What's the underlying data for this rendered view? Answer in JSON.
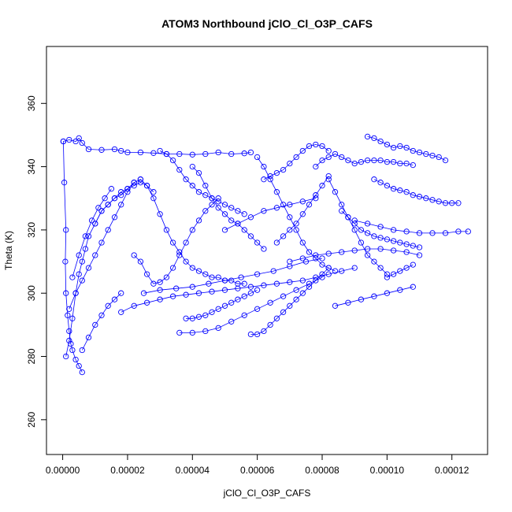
{
  "chart_data": {
    "type": "scatter",
    "title": "ATOM3 Northbound jClO_Cl_O3P_CAFS",
    "xlabel": "jClO_Cl_O3P_CAFS",
    "ylabel": "Theta (K)",
    "xlim": [
      -5e-06,
      0.000131
    ],
    "ylim": [
      249,
      378
    ],
    "xticks": [
      0.0,
      2e-05,
      4e-05,
      6e-05,
      8e-05,
      0.0001,
      0.00012
    ],
    "xtick_labels": [
      "0.00000",
      "0.00002",
      "0.00004",
      "0.00006",
      "0.00008",
      "0.00010",
      "0.00012"
    ],
    "yticks": [
      260,
      280,
      300,
      320,
      340,
      360
    ],
    "ytick_labels": [
      "260",
      "280",
      "300",
      "320",
      "340",
      "360"
    ],
    "grid": false,
    "legend": "none",
    "color": "#0000ff",
    "marker": "open-circle",
    "connected": true,
    "series": [
      {
        "segments": [
          {
            "x": [
              2e-07,
              2e-06,
              4e-06,
              5e-06,
              6e-06,
              8e-06,
              1.2e-05,
              1.6e-05,
              1.8e-05,
              2e-05,
              2.4e-05,
              2.8e-05,
              3.2e-05,
              3.6e-05,
              4e-05,
              4.4e-05,
              4.8e-05,
              5.2e-05,
              5.6e-05,
              5.8e-05
            ],
            "y": [
              348.0,
              348.5,
              348.0,
              349.0,
              347.5,
              345.5,
              345.3,
              345.5,
              345.0,
              344.5,
              344.5,
              344.3,
              344.0,
              344.0,
              343.8,
              344.0,
              344.5,
              344.0,
              344.2,
              344.5
            ]
          },
          {
            "x": [
              2e-07,
              5e-07,
              1e-06,
              8e-07,
              1e-06,
              1.5e-06,
              2e-06,
              2.5e-06,
              3e-06,
              4e-06,
              5e-06,
              6e-06
            ],
            "y": [
              348.0,
              335.0,
              320.0,
              310.0,
              300.0,
              293.0,
              288.0,
              284.0,
              282.0,
              279.0,
              277.0,
              275.0
            ]
          },
          {
            "x": [
              1e-06,
              2e-06,
              3e-06,
              4e-06,
              5e-06,
              6e-06,
              7e-06,
              8e-06,
              1e-05,
              1.2e-05,
              1.4e-05,
              1.6e-05,
              1.8e-05,
              2e-05,
              2.2e-05,
              2.4e-05
            ],
            "y": [
              280.0,
              285.0,
              292.0,
              300.0,
              306.0,
              310.0,
              314.0,
              318.0,
              322.0,
              326.0,
              328.0,
              330.0,
              331.0,
              333.0,
              335.0,
              336.0
            ]
          },
          {
            "x": [
              2e-06,
              4e-06,
              6e-06,
              8e-06,
              1e-05,
              1.2e-05,
              1.4e-05,
              1.6e-05,
              1.8e-05,
              2e-05,
              2.2e-05
            ],
            "y": [
              295.0,
              300.0,
              304.0,
              308.0,
              312.0,
              316.0,
              320.0,
              324.0,
              328.0,
              332.0,
              335.0
            ]
          },
          {
            "x": [
              3e-06,
              5e-06,
              7e-06,
              9e-06,
              1.1e-05,
              1.3e-05,
              1.5e-05
            ],
            "y": [
              305.0,
              312.0,
              318.0,
              323.0,
              327.0,
              330.0,
              333.0
            ]
          },
          {
            "x": [
              2.4e-05,
              2.6e-05,
              2.8e-05,
              3e-05,
              3.2e-05,
              3.4e-05,
              3.6e-05,
              3.8e-05,
              4e-05,
              4.2e-05,
              4.4e-05,
              4.6e-05,
              4.8e-05,
              5e-05,
              5.2e-05,
              5.4e-05,
              5.6e-05
            ],
            "y": [
              336.0,
              334.0,
              330.0,
              325.0,
              320.0,
              316.0,
              313.0,
              310.0,
              308.0,
              307.0,
              306.0,
              305.0,
              305.0,
              304.0,
              304.0,
              303.0,
              303.0
            ]
          },
          {
            "x": [
              2.2e-05,
              2.4e-05,
              2.6e-05,
              2.8e-05,
              3e-05,
              3.2e-05,
              3.4e-05,
              3.6e-05,
              3.8e-05,
              4e-05,
              4.2e-05,
              4.4e-05,
              4.6e-05,
              4.8e-05
            ],
            "y": [
              312.0,
              310.0,
              306.0,
              303.0,
              303.5,
              305.0,
              308.0,
              312.0,
              316.0,
              320.0,
              323.0,
              326.0,
              328.0,
              330.0
            ]
          },
          {
            "x": [
              3e-05,
              3.2e-05,
              3.4e-05,
              3.6e-05,
              3.8e-05,
              4e-05,
              4.2e-05,
              4.4e-05,
              4.6e-05,
              4.8e-05,
              5e-05,
              5.2e-05,
              5.4e-05,
              5.6e-05
            ],
            "y": [
              345.0,
              344.0,
              342.0,
              339.0,
              336.0,
              334.0,
              332.0,
              331.0,
              330.0,
              329.0,
              328.0,
              327.0,
              326.0,
              325.0
            ]
          },
          {
            "x": [
              4e-05,
              4.2e-05,
              4.4e-05,
              4.6e-05,
              4.8e-05,
              5e-05,
              5.2e-05,
              5.4e-05,
              5.6e-05,
              5.8e-05,
              6e-05,
              6.2e-05
            ],
            "y": [
              340.0,
              338.0,
              334.0,
              330.0,
              327.0,
              325.0,
              323.0,
              322.0,
              320.0,
              318.0,
              316.0,
              314.0
            ]
          },
          {
            "x": [
              1.8e-05,
              2.2e-05,
              2.6e-05,
              3e-05,
              3.4e-05,
              3.8e-05,
              4.2e-05,
              4.6e-05,
              5e-05,
              5.4e-05,
              5.8e-05,
              6.2e-05,
              6.6e-05,
              7e-05,
              7.4e-05,
              7.8e-05,
              8.2e-05,
              8.6e-05,
              9e-05
            ],
            "y": [
              294.0,
              296.0,
              297.0,
              298.0,
              299.0,
              299.5,
              300.0,
              300.5,
              301.0,
              301.5,
              302.0,
              302.5,
              303.0,
              303.5,
              304.0,
              305.0,
              306.0,
              307.0,
              308.0
            ]
          },
          {
            "x": [
              2.5e-05,
              3e-05,
              3.5e-05,
              4e-05,
              4.5e-05,
              5e-05,
              5.5e-05,
              6e-05,
              6.5e-05,
              7e-05,
              7.5e-05,
              8e-05
            ],
            "y": [
              300.0,
              301.0,
              301.5,
              302.0,
              303.0,
              304.0,
              305.0,
              306.0,
              307.0,
              308.5,
              310.0,
              311.0
            ]
          },
          {
            "x": [
              3.6e-05,
              4e-05,
              4.4e-05,
              4.8e-05,
              5.2e-05,
              5.6e-05,
              6e-05,
              6.4e-05,
              6.8e-05,
              7.2e-05,
              7.6e-05,
              8e-05
            ],
            "y": [
              287.5,
              287.5,
              288.0,
              289.0,
              291.0,
              293.0,
              295.0,
              297.0,
              299.0,
              301.0,
              303.0,
              305.0
            ]
          },
          {
            "x": [
              5.8e-05,
              6e-05,
              6.2e-05,
              6.4e-05,
              6.6e-05,
              6.8e-05,
              7e-05,
              7.2e-05,
              7.4e-05,
              7.6e-05,
              7.8e-05,
              8e-05,
              8.2e-05
            ],
            "y": [
              287.0,
              287.0,
              288.0,
              290.0,
              292.0,
              294.0,
              296.0,
              298.0,
              300.0,
              302.0,
              304.0,
              306.0,
              308.0
            ]
          },
          {
            "x": [
              6e-05,
              6.2e-05,
              6.4e-05,
              6.6e-05,
              6.8e-05,
              7e-05,
              7.2e-05,
              7.4e-05,
              7.6e-05,
              7.8e-05,
              8e-05,
              8.2e-05,
              8.4e-05
            ],
            "y": [
              343.0,
              340.0,
              336.0,
              332.0,
              328.0,
              324.0,
              320.0,
              316.0,
              313.0,
              311.0,
              309.0,
              308.0,
              307.0
            ]
          },
          {
            "x": [
              6.2e-05,
              6.4e-05,
              6.6e-05,
              6.8e-05,
              7e-05,
              7.2e-05,
              7.4e-05,
              7.6e-05,
              7.8e-05,
              8e-05,
              8.2e-05
            ],
            "y": [
              336.0,
              337.0,
              338.0,
              339.0,
              341.0,
              343.0,
              345.0,
              346.5,
              347.0,
              346.5,
              345.0
            ]
          },
          {
            "x": [
              7.8e-05,
              8e-05,
              8.2e-05,
              8.4e-05,
              8.6e-05,
              8.8e-05,
              9e-05,
              9.2e-05,
              9.4e-05,
              9.6e-05,
              9.8e-05,
              0.0001,
              0.000102,
              0.000104,
              0.000106,
              0.000108
            ],
            "y": [
              340.0,
              342.0,
              343.0,
              344.0,
              343.0,
              342.0,
              341.0,
              341.5,
              342.0,
              342.0,
              342.0,
              341.5,
              341.5,
              341.0,
              341.0,
              340.5
            ]
          },
          {
            "x": [
              9.4e-05,
              9.6e-05,
              9.8e-05,
              0.0001,
              0.000102,
              0.000104,
              0.000106,
              0.000108,
              0.00011,
              0.000112,
              0.000114,
              0.000116,
              0.000118
            ],
            "y": [
              349.5,
              349.0,
              348.0,
              347.0,
              346.0,
              346.5,
              346.0,
              345.0,
              344.5,
              344.0,
              343.5,
              343.0,
              342.0
            ]
          },
          {
            "x": [
              8.2e-05,
              8.4e-05,
              8.6e-05,
              8.8e-05,
              9e-05,
              9.2e-05,
              9.4e-05,
              9.6e-05,
              9.8e-05,
              0.0001
            ],
            "y": [
              336.0,
              332.0,
              328.0,
              324.0,
              320.0,
              316.0,
              312.0,
              310.0,
              308.0,
              306.0
            ]
          },
          {
            "x": [
              8.6e-05,
              8.8e-05,
              9e-05,
              9.2e-05,
              9.4e-05,
              9.6e-05,
              9.8e-05,
              0.0001,
              0.000102,
              0.000104,
              0.000106,
              0.000108,
              0.00011
            ],
            "y": [
              326.0,
              324.0,
              322.0,
              320.0,
              319.0,
              318.0,
              317.5,
              317.0,
              316.5,
              316.0,
              315.5,
              315.0,
              314.5
            ]
          },
          {
            "x": [
              9e-05,
              9.4e-05,
              9.8e-05,
              0.000102,
              0.000106,
              0.00011,
              0.000114,
              0.000118,
              0.000122,
              0.000125
            ],
            "y": [
              323.0,
              322.0,
              321.0,
              320.0,
              319.5,
              319.0,
              319.0,
              319.0,
              319.5,
              319.5
            ]
          },
          {
            "x": [
              9.6e-05,
              9.8e-05,
              0.0001,
              0.000102,
              0.000104,
              0.000106,
              0.000108,
              0.00011,
              0.000112,
              0.000114,
              0.000116,
              0.000118,
              0.00012,
              0.000122
            ],
            "y": [
              336.0,
              335.0,
              334.0,
              333.0,
              332.5,
              332.0,
              331.0,
              330.5,
              330.0,
              329.5,
              329.0,
              328.5,
              328.5,
              328.5
            ]
          },
          {
            "x": [
              7e-05,
              7.4e-05,
              7.8e-05,
              8.2e-05,
              8.6e-05,
              9e-05,
              9.4e-05,
              9.8e-05,
              0.000102,
              0.000106,
              0.00011
            ],
            "y": [
              310.0,
              311.0,
              312.0,
              312.5,
              313.0,
              313.5,
              314.0,
              314.0,
              313.5,
              313.0,
              312.0
            ]
          },
          {
            "x": [
              8.4e-05,
              8.8e-05,
              9.2e-05,
              9.6e-05,
              0.0001,
              0.000104,
              0.000108
            ],
            "y": [
              296.0,
              297.0,
              298.0,
              299.0,
              300.0,
              301.0,
              302.0
            ]
          },
          {
            "x": [
              0.0001,
              0.000102,
              0.000104,
              0.000106,
              0.000108
            ],
            "y": [
              305.0,
              306.0,
              307.0,
              308.0,
              309.0
            ]
          },
          {
            "x": [
              3.8e-05,
              4e-05,
              4.2e-05,
              4.4e-05,
              4.6e-05,
              4.8e-05,
              5e-05,
              5.2e-05,
              5.4e-05,
              5.6e-05,
              5.8e-05,
              6e-05
            ],
            "y": [
              292.0,
              292.0,
              292.5,
              293.0,
              294.0,
              295.0,
              296.0,
              297.0,
              298.0,
              299.0,
              300.0,
              301.0
            ]
          },
          {
            "x": [
              5e-05,
              5.4e-05,
              5.8e-05,
              6.2e-05,
              6.6e-05,
              7e-05,
              7.4e-05,
              7.8e-05
            ],
            "y": [
              320.0,
              322.0,
              324.0,
              326.0,
              327.0,
              328.0,
              329.0,
              330.0
            ]
          },
          {
            "x": [
              6.6e-05,
              6.8e-05,
              7e-05,
              7.2e-05,
              7.4e-05,
              7.6e-05,
              7.8e-05,
              8e-05,
              8.2e-05
            ],
            "y": [
              316.0,
              318.0,
              320.0,
              322.0,
              325.0,
              328.0,
              331.0,
              334.0,
              337.0
            ]
          },
          {
            "x": [
              1e-05,
              1.2e-05,
              1.4e-05,
              1.6e-05,
              1.8e-05,
              2e-05,
              2.2e-05,
              2.4e-05,
              2.6e-05,
              2.8e-05
            ],
            "y": [
              322.0,
              326.0,
              328.0,
              330.0,
              332.0,
              333.0,
              334.0,
              335.0,
              334.0,
              332.0
            ]
          },
          {
            "x": [
              6e-06,
              8e-06,
              1e-05,
              1.2e-05,
              1.4e-05,
              1.6e-05,
              1.8e-05
            ],
            "y": [
              282.0,
              286.0,
              290.0,
              293.0,
              296.0,
              298.0,
              300.0
            ]
          }
        ]
      }
    ]
  }
}
